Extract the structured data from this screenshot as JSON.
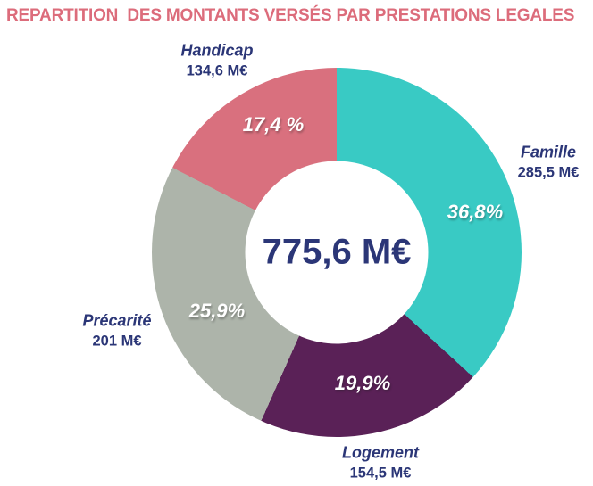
{
  "title": "REPARTITION  DES MONTANTS VERSÉS PAR PRESTATIONS LEGALES",
  "colors": {
    "title": "#dc6c7b",
    "text_navy": "#2b3677",
    "famille": "#39cac4",
    "logement": "#5a2157",
    "precarite": "#adb4aa",
    "handicap": "#d9707e"
  },
  "chart_data": {
    "type": "pie",
    "donut": true,
    "title": "REPARTITION  DES MONTANTS VERSÉS PAR PRESTATIONS LEGALES",
    "unit": "M€",
    "center_total_value": 775.6,
    "center_total_label": "775,6 M€",
    "start_angle_deg": 0,
    "direction": "clockwise",
    "categories": [
      "Famille",
      "Logement",
      "Précarité",
      "Handicap"
    ],
    "values": [
      285.5,
      154.5,
      201,
      134.6
    ],
    "percentages": [
      36.8,
      19.9,
      25.9,
      17.4
    ],
    "legend_position": "none",
    "slices": [
      {
        "label": "Famille",
        "value": 285.5,
        "amount_label": "285,5 M€",
        "pct": 36.8,
        "pct_label": "36,8%",
        "color": "#39cac4"
      },
      {
        "label": "Logement",
        "value": 154.5,
        "amount_label": "154,5 M€",
        "pct": 19.9,
        "pct_label": "19,9%",
        "color": "#5a2157"
      },
      {
        "label": "Précarité",
        "value": 201,
        "amount_label": "201 M€",
        "pct": 25.9,
        "pct_label": "25,9%",
        "color": "#adb4aa"
      },
      {
        "label": "Handicap",
        "value": 134.6,
        "amount_label": "134,6 M€",
        "pct": 17.4,
        "pct_label": "17,4 %",
        "color": "#d9707e"
      }
    ]
  }
}
